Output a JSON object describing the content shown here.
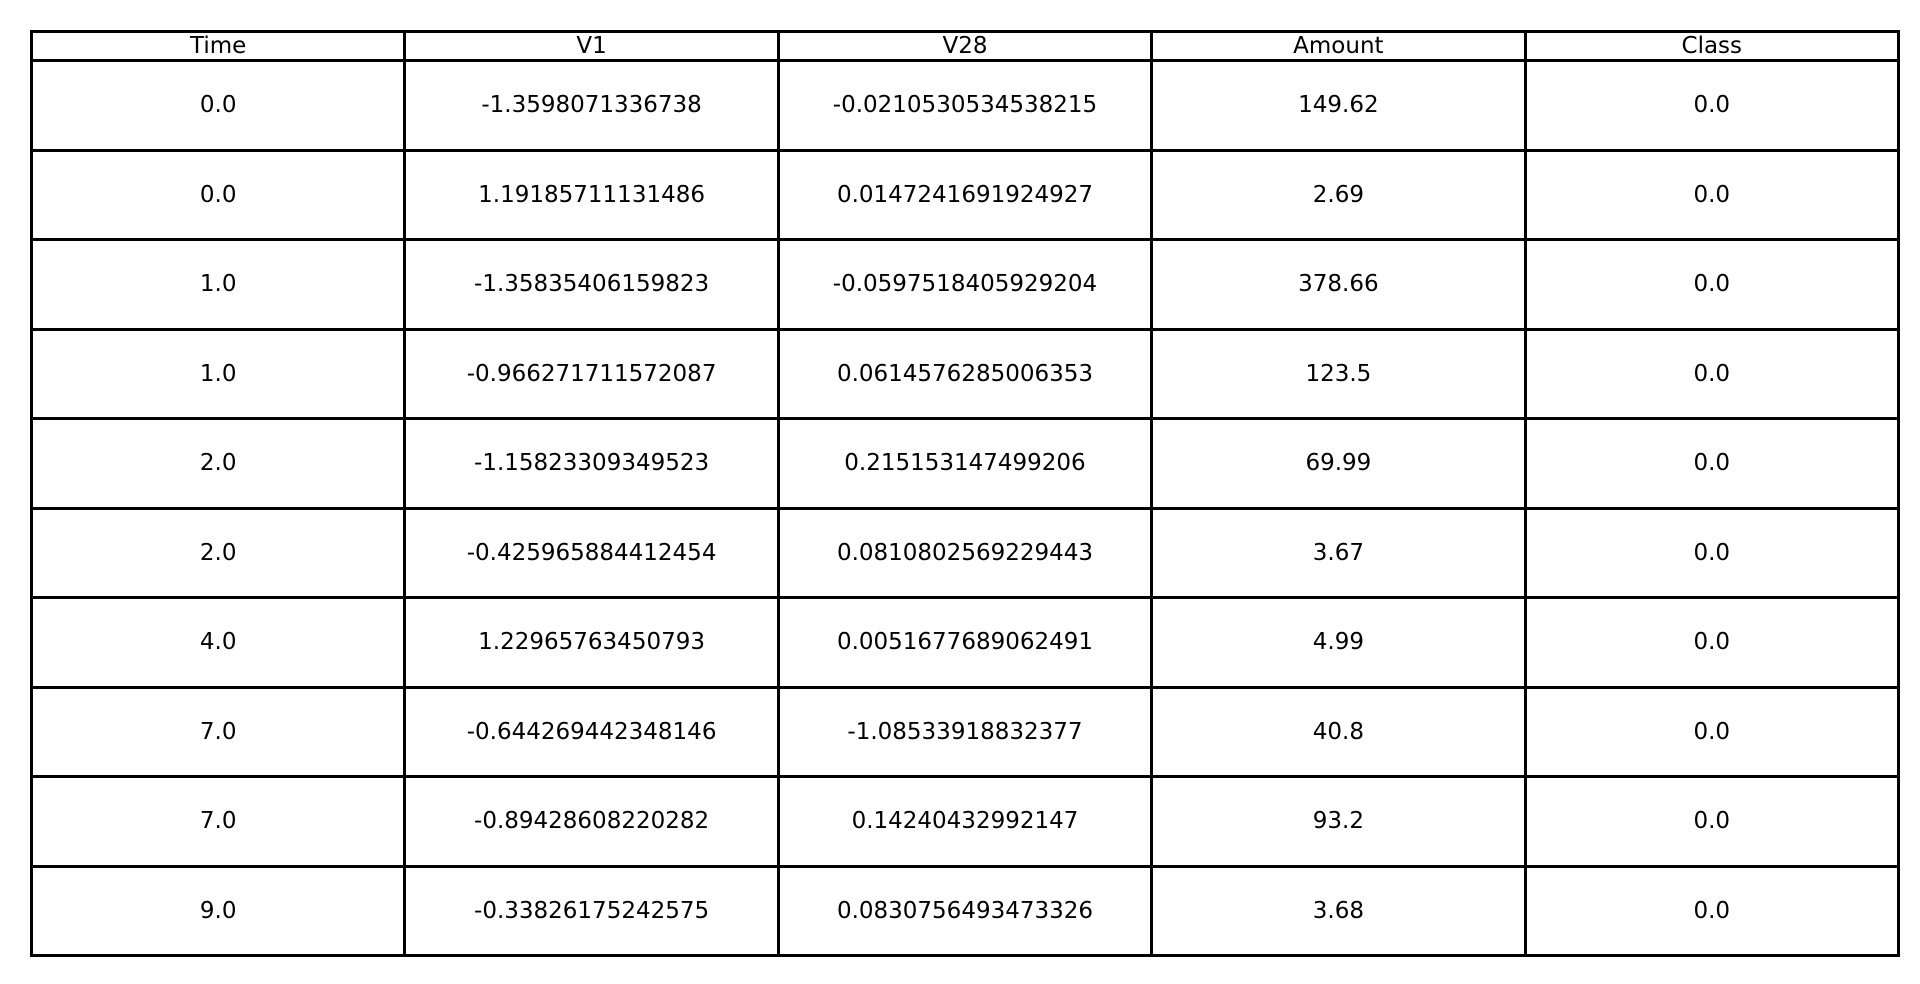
{
  "chart_data": {
    "type": "table",
    "columns": [
      "Time",
      "V1",
      "V28",
      "Amount",
      "Class"
    ],
    "rows": [
      [
        "0.0",
        "-1.3598071336738",
        "-0.0210530534538215",
        "149.62",
        "0.0"
      ],
      [
        "0.0",
        "1.19185711131486",
        "0.0147241691924927",
        "2.69",
        "0.0"
      ],
      [
        "1.0",
        "-1.35835406159823",
        "-0.0597518405929204",
        "378.66",
        "0.0"
      ],
      [
        "1.0",
        "-0.966271711572087",
        "0.0614576285006353",
        "123.5",
        "0.0"
      ],
      [
        "2.0",
        "-1.15823309349523",
        "0.215153147499206",
        "69.99",
        "0.0"
      ],
      [
        "2.0",
        "-0.425965884412454",
        "0.0810802569229443",
        "3.67",
        "0.0"
      ],
      [
        "4.0",
        "1.22965763450793",
        "0.0051677689062491",
        "4.99",
        "0.0"
      ],
      [
        "7.0",
        "-0.644269442348146",
        "-1.08533918832377",
        "40.8",
        "0.0"
      ],
      [
        "7.0",
        "-0.89428608220282",
        "0.14240432992147",
        "93.2",
        "0.0"
      ],
      [
        "9.0",
        "-0.33826175242575",
        "0.0830756493473326",
        "3.68",
        "0.0"
      ]
    ]
  },
  "colors": {
    "border": "#000000",
    "text": "#000000",
    "background": "#ffffff"
  }
}
